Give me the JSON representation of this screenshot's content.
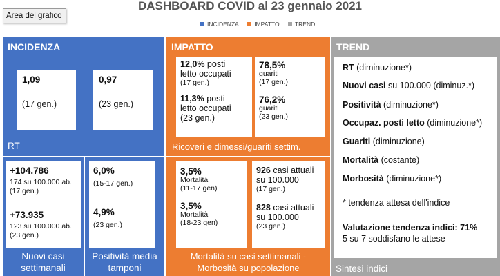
{
  "title": "DASHBOARD COVID al 23 gennaio 2021",
  "tooltip": "Area del grafico",
  "legend": [
    {
      "label": "INCIDENZA",
      "color": "#4472c4"
    },
    {
      "label": "IMPATTO",
      "color": "#ed7d31"
    },
    {
      "label": "TREND",
      "color": "#a5a5a5"
    }
  ],
  "incidenza": {
    "header": "INCIDENZA",
    "rt_label": "RT",
    "rt_card1": {
      "value": "1,09",
      "date": "(17  gen.)"
    },
    "rt_card2": {
      "value": "0,97",
      "date": "(23 gen.)"
    },
    "casi": {
      "v1": "+104.786",
      "s1a": "174 su 100.000 ab.",
      "s1b": "(17 gen.)",
      "v2": "+73.935",
      "s2a": "123 su 100.000 ab.",
      "s2b": "(23 gen.)",
      "footer_l1": "Nuovi casi",
      "footer_l2": "settimanali"
    },
    "positivita": {
      "v1": "6,0%",
      "s1": "(15-17 gen.)",
      "v2": "4,9%",
      "s2": "(23 gen.)",
      "footer_l1": "Positività media",
      "footer_l2": "tamponi"
    }
  },
  "impatto": {
    "header": "IMPATTO",
    "ricoveri": {
      "v1": "12,0%",
      "t1a": " posti",
      "t1b": "letto occupati",
      "s1": "(17 gen.)",
      "v2": "11,3%",
      "t2a": " posti",
      "t2b": "letto occupati",
      "s2": "(23 gen.)"
    },
    "guariti": {
      "v1": "78,5%",
      "t1": "guariti",
      "s1": "(17 gen.)",
      "v2": "76,2%",
      "t2": "guariti",
      "s2": "(23 gen.)"
    },
    "ricoveri_footer": "Ricoveri e dimessi/guariti settim.",
    "mortalita": {
      "v1": "3,5%",
      "t1": "Mortalità",
      "s1": "(11-17 gen)",
      "v2": "3,5%",
      "t2": "Mortalità",
      "s2": "(18-23 gen)"
    },
    "morbosita": {
      "v1": "926",
      "t1a": " casi attuali",
      "t1b": "su 100.000",
      "s1": "(17 gen.)",
      "v2": "828",
      "t2a": " casi attuali",
      "t2b": "su 100.000",
      "s2": "(23 gen.)"
    },
    "mortalita_footer_l1": "Mortalità su casi settimanali -",
    "mortalita_footer_l2": "Morbosità su popolazione"
  },
  "trend": {
    "header": "TREND",
    "items": [
      {
        "label": "RT",
        "note": "  (diminuzione*)"
      },
      {
        "label": "Nuovi casi",
        "note": " su 100.000 (diminuz.*)"
      },
      {
        "label": "Positività",
        "note": "  (diminuzione*)"
      },
      {
        "label": "Occupaz. posti letto",
        "note": " (diminuzione*)"
      },
      {
        "label": "Guariti",
        "note": " (diminuzione)"
      },
      {
        "label": "Mortalità",
        "note": " (costante)"
      },
      {
        "label": "Morbosità",
        "note": "  (diminuzione*)"
      }
    ],
    "footnote": "* tendenza attesa dell'indice",
    "valutazione": "Valutazione tendenza indici: 71%",
    "valutazione_sub": "5 su 7 soddisfano le attese",
    "footer": "Sintesi indici"
  }
}
